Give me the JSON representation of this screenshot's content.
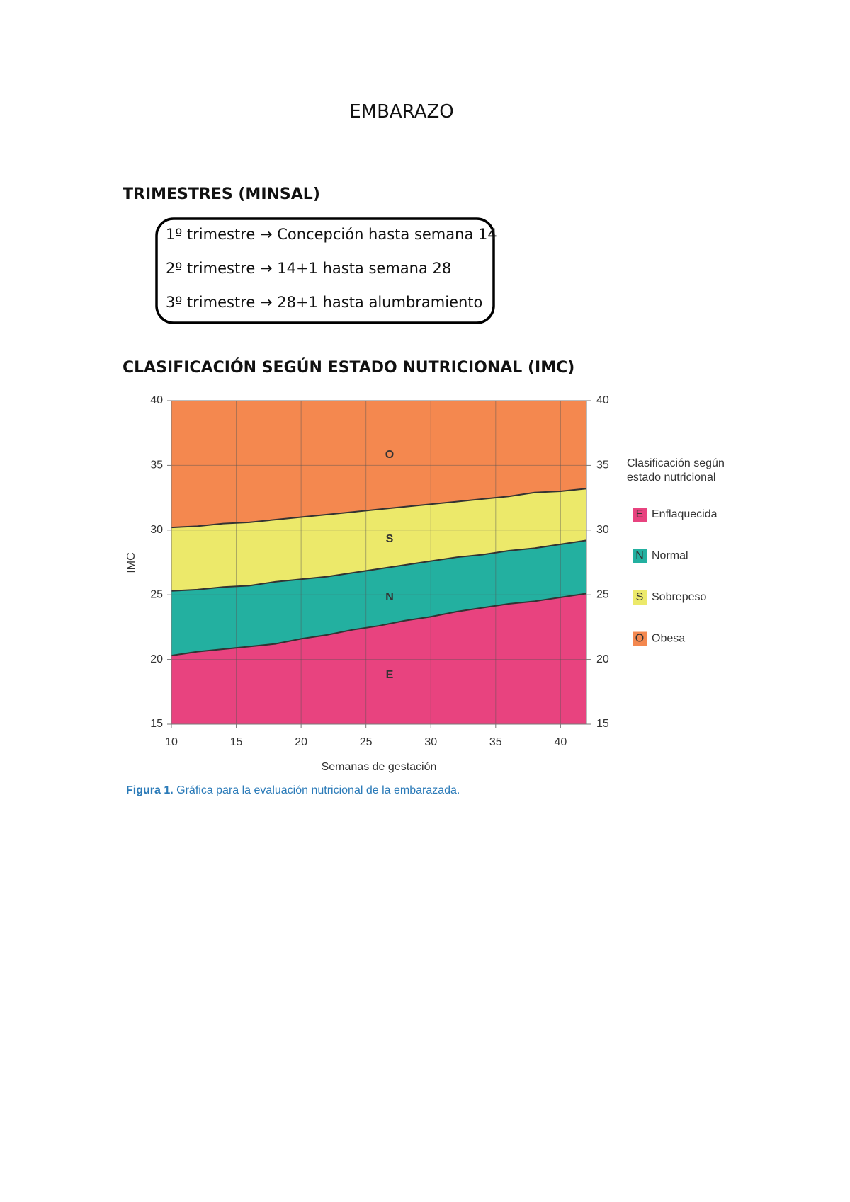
{
  "header": {
    "title": "EMBARAZO"
  },
  "trimesters": {
    "title": "TRIMESTRES (MINSAL)",
    "items": [
      "1º trimestre → Concepción hasta semana 14",
      "2º trimestre → 14+1 hasta semana 28",
      "3º trimestre → 28+1 hasta alumbramiento"
    ]
  },
  "classification": {
    "title": "CLASIFICACIÓN SEGÚN ESTADO NUTRICIONAL (IMC)"
  },
  "chart_data": {
    "type": "area",
    "x_label": "Semanas de gestación",
    "y_label": "IMC",
    "x": [
      10,
      12,
      14,
      16,
      18,
      20,
      22,
      24,
      26,
      28,
      30,
      32,
      34,
      36,
      38,
      40,
      42
    ],
    "series": [
      {
        "name": "Enflaquecida",
        "key": "E",
        "color": "#e8437f",
        "values": [
          20.3,
          20.6,
          20.8,
          21.0,
          21.2,
          21.6,
          21.9,
          22.3,
          22.6,
          23.0,
          23.3,
          23.7,
          24.0,
          24.3,
          24.5,
          24.8,
          25.1
        ]
      },
      {
        "name": "Normal",
        "key": "N",
        "color": "#23b0a0",
        "values": [
          25.3,
          25.4,
          25.6,
          25.7,
          26.0,
          26.2,
          26.4,
          26.7,
          27.0,
          27.3,
          27.6,
          27.9,
          28.1,
          28.4,
          28.6,
          28.9,
          29.2
        ]
      },
      {
        "name": "Sobrepeso",
        "key": "S",
        "color": "#ece96a",
        "values": [
          30.2,
          30.3,
          30.5,
          30.6,
          30.8,
          31.0,
          31.2,
          31.4,
          31.6,
          31.8,
          32.0,
          32.2,
          32.4,
          32.6,
          32.9,
          33.0,
          33.2
        ]
      },
      {
        "name": "Obesa",
        "key": "O",
        "color": "#f4884f"
      }
    ],
    "xlim": [
      10,
      42
    ],
    "xticks": [
      10,
      15,
      20,
      25,
      30,
      35,
      40
    ],
    "ylim": [
      15,
      40
    ],
    "yticks": [
      15,
      20,
      25,
      30,
      35,
      40
    ],
    "y2lim": [
      15,
      40
    ],
    "y2ticks": [
      15,
      20,
      25,
      30,
      35,
      40
    ],
    "grid": true,
    "legend_title": [
      "Clasificación según",
      "estado nutricional"
    ],
    "caption": {
      "label": "Figura 1.",
      "text": "Gráfica para la evaluación nutricional de la embarazada."
    }
  }
}
